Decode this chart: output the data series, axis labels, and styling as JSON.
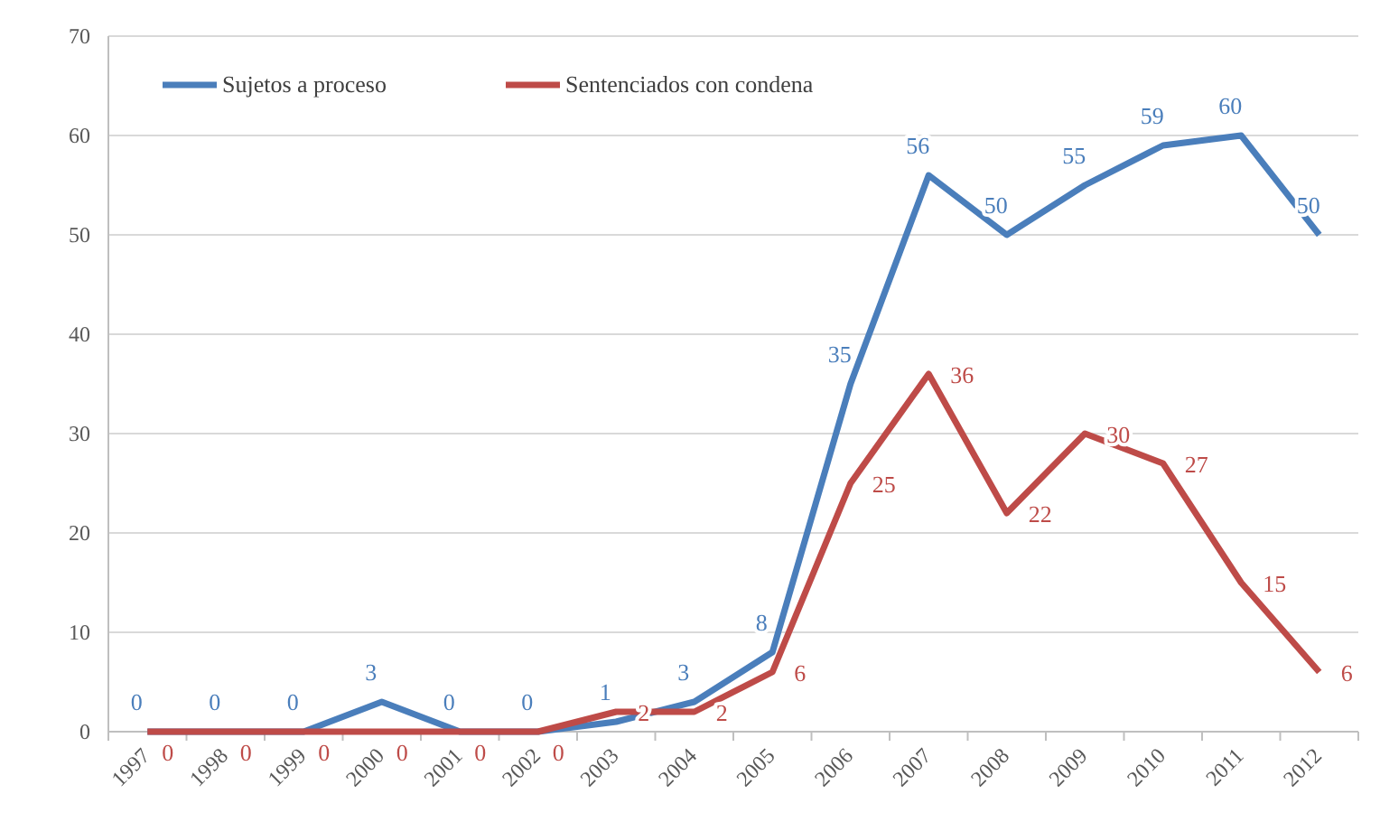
{
  "chart_data": {
    "type": "line",
    "categories": [
      "1997",
      "1998",
      "1999",
      "2000",
      "2001",
      "2002",
      "2003",
      "2004",
      "2005",
      "2006",
      "2007",
      "2008",
      "2009",
      "2010",
      "2011",
      "2012"
    ],
    "series": [
      {
        "name": "Sujetos a proceso",
        "color": "#4a7ebb",
        "values": [
          0,
          0,
          0,
          3,
          0,
          0,
          1,
          3,
          8,
          35,
          56,
          50,
          55,
          59,
          60,
          50
        ]
      },
      {
        "name": "Sentenciados con condena",
        "color": "#be4b48",
        "values": [
          0,
          0,
          0,
          0,
          0,
          0,
          2,
          2,
          6,
          25,
          36,
          22,
          30,
          27,
          15,
          6
        ]
      }
    ],
    "ylim": [
      0,
      70
    ],
    "yticks": [
      0,
      10,
      20,
      30,
      40,
      50,
      60,
      70
    ],
    "grid": "y",
    "legend": "top left",
    "data_labels": true,
    "marker": "none",
    "line_style": "solid"
  }
}
